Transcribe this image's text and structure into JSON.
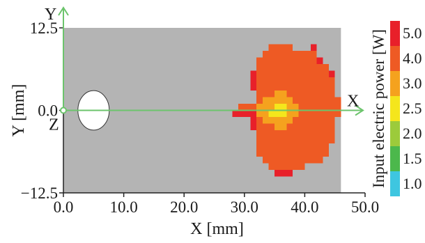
{
  "chart_data": {
    "type": "heatmap",
    "xlabel": "X [mm]",
    "ylabel": "Y [mm]",
    "xlim": [
      0,
      50
    ],
    "ylim": [
      -12.5,
      12.5
    ],
    "x_ticks": [
      "0.0",
      "10.0",
      "20.0",
      "30.0",
      "40.0",
      "50.0"
    ],
    "y_ticks": [
      "12.5",
      "0.0",
      "−12.5"
    ],
    "axis_labels": {
      "x_arrow": "X",
      "y_arrow": "Y",
      "z_origin": "Z"
    },
    "plate": {
      "x_range": [
        0,
        46
      ],
      "y_range": [
        -12.5,
        12.5
      ],
      "color": "#b4b4b4"
    },
    "hole": {
      "center": [
        5,
        0
      ],
      "radius": 2.6
    },
    "colorbar": {
      "title": "Input electric power [W]",
      "levels": [
        {
          "label": "5.0",
          "color": "#e8202a"
        },
        {
          "label": "4.0",
          "color": "#ee5a24"
        },
        {
          "label": "3.0",
          "color": "#f5a21e"
        },
        {
          "label": "2.5",
          "color": "#f5e61c"
        },
        {
          "label": "2.0",
          "color": "#9ccb3b"
        },
        {
          "label": "1.5",
          "color": "#4cb84c"
        },
        {
          "label": "1.0",
          "color": "#3ec6e0"
        }
      ]
    },
    "cell_size_mm": 1,
    "cells": [
      {
        "y": 9.5,
        "x0": 34,
        "x1": 38,
        "level": "4.0"
      },
      {
        "y": 9.5,
        "x0": 41,
        "x1": 42,
        "level": "5.0"
      },
      {
        "y": 8.5,
        "x0": 33,
        "x1": 40,
        "level": "4.0"
      },
      {
        "y": 8.5,
        "x0": 40,
        "x1": 42,
        "level": "4.0"
      },
      {
        "y": 7.5,
        "x0": 32,
        "x1": 42,
        "level": "4.0"
      },
      {
        "y": 7.5,
        "x0": 42,
        "x1": 43,
        "level": "5.0"
      },
      {
        "y": 6.5,
        "x0": 32,
        "x1": 44,
        "level": "4.0"
      },
      {
        "y": 5.5,
        "x0": 31,
        "x1": 32,
        "level": "5.0"
      },
      {
        "y": 5.5,
        "x0": 32,
        "x1": 44,
        "level": "4.0"
      },
      {
        "y": 5.5,
        "x0": 44,
        "x1": 45,
        "level": "5.0"
      },
      {
        "y": 4.5,
        "x0": 31,
        "x1": 32,
        "level": "5.0"
      },
      {
        "y": 4.5,
        "x0": 32,
        "x1": 45,
        "level": "4.0"
      },
      {
        "y": 3.5,
        "x0": 31,
        "x1": 32,
        "level": "5.0"
      },
      {
        "y": 3.5,
        "x0": 32,
        "x1": 45,
        "level": "4.0"
      },
      {
        "y": 2.5,
        "x0": 32,
        "x1": 35,
        "level": "4.0"
      },
      {
        "y": 2.5,
        "x0": 35,
        "x1": 37,
        "level": "3.0"
      },
      {
        "y": 2.5,
        "x0": 37,
        "x1": 45,
        "level": "4.0"
      },
      {
        "y": 1.5,
        "x0": 32,
        "x1": 33,
        "level": "4.0"
      },
      {
        "y": 1.5,
        "x0": 33,
        "x1": 38,
        "level": "3.0"
      },
      {
        "y": 1.5,
        "x0": 38,
        "x1": 46,
        "level": "4.0"
      },
      {
        "y": 0.5,
        "x0": 29,
        "x1": 32,
        "level": "4.0"
      },
      {
        "y": 0.5,
        "x0": 32,
        "x1": 35,
        "level": "3.0"
      },
      {
        "y": 0.5,
        "x0": 35,
        "x1": 37,
        "level": "2.5"
      },
      {
        "y": 0.5,
        "x0": 37,
        "x1": 39,
        "level": "3.0"
      },
      {
        "y": 0.5,
        "x0": 39,
        "x1": 46,
        "level": "4.0"
      },
      {
        "y": -0.5,
        "x0": 28,
        "x1": 32,
        "level": "5.0"
      },
      {
        "y": -0.5,
        "x0": 32,
        "x1": 34,
        "level": "3.0"
      },
      {
        "y": -0.5,
        "x0": 34,
        "x1": 37,
        "level": "2.5"
      },
      {
        "y": -0.5,
        "x0": 37,
        "x1": 39,
        "level": "3.0"
      },
      {
        "y": -0.5,
        "x0": 39,
        "x1": 46,
        "level": "4.0"
      },
      {
        "y": -1.5,
        "x0": 31,
        "x1": 32,
        "level": "5.0"
      },
      {
        "y": -1.5,
        "x0": 32,
        "x1": 33,
        "level": "4.0"
      },
      {
        "y": -1.5,
        "x0": 33,
        "x1": 38,
        "level": "3.0"
      },
      {
        "y": -1.5,
        "x0": 38,
        "x1": 45,
        "level": "4.0"
      },
      {
        "y": -2.5,
        "x0": 31,
        "x1": 32,
        "level": "5.0"
      },
      {
        "y": -2.5,
        "x0": 32,
        "x1": 35,
        "level": "4.0"
      },
      {
        "y": -2.5,
        "x0": 35,
        "x1": 37,
        "level": "3.0"
      },
      {
        "y": -2.5,
        "x0": 37,
        "x1": 45,
        "level": "4.0"
      },
      {
        "y": -3.5,
        "x0": 32,
        "x1": 45,
        "level": "4.0"
      },
      {
        "y": -4.5,
        "x0": 32,
        "x1": 45,
        "level": "4.0"
      },
      {
        "y": -5.5,
        "x0": 32,
        "x1": 44,
        "level": "4.0"
      },
      {
        "y": -6.5,
        "x0": 32,
        "x1": 44,
        "level": "4.0"
      },
      {
        "y": -7.5,
        "x0": 33,
        "x1": 43,
        "level": "4.0"
      },
      {
        "y": -8.5,
        "x0": 34,
        "x1": 40,
        "level": "4.0"
      },
      {
        "y": -9.5,
        "x0": 35,
        "x1": 38,
        "level": "5.0"
      }
    ]
  }
}
